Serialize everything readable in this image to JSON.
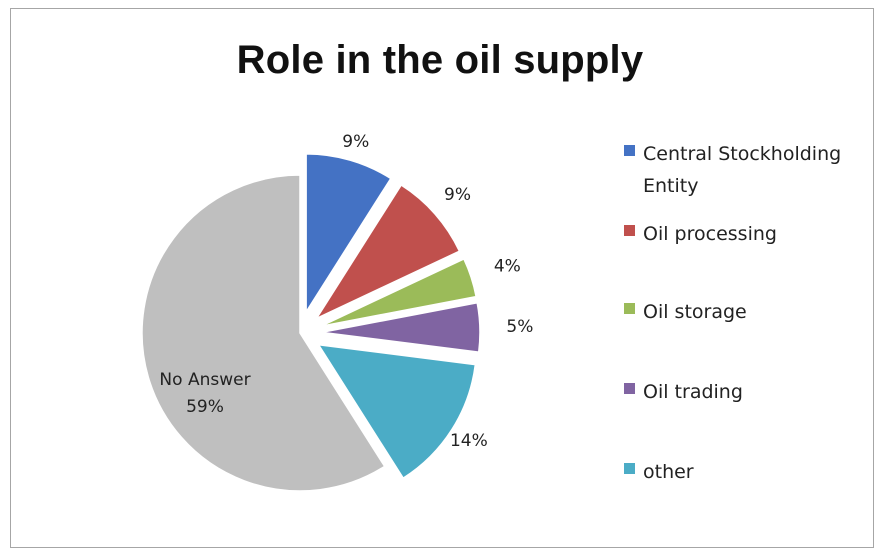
{
  "chart_data": {
    "type": "pie",
    "title": "Role in the oil supply",
    "slices": [
      {
        "name": "Central Stockholding Entity",
        "value": 9,
        "label": "9%",
        "color": "#4472c4"
      },
      {
        "name": "Oil processing",
        "value": 9,
        "label": "9%",
        "color": "#c0504d"
      },
      {
        "name": "Oil storage",
        "value": 4,
        "label": "4%",
        "color": "#9bbb59"
      },
      {
        "name": "Oil trading",
        "value": 5,
        "label": "5%",
        "color": "#8064a2"
      },
      {
        "name": "other",
        "value": 14,
        "label": "14%",
        "color": "#4bacc6"
      },
      {
        "name": "No Answer",
        "value": 59,
        "label": "59%",
        "color": "#bfbfbf"
      }
    ],
    "legend_position": "right",
    "exploded": true
  }
}
